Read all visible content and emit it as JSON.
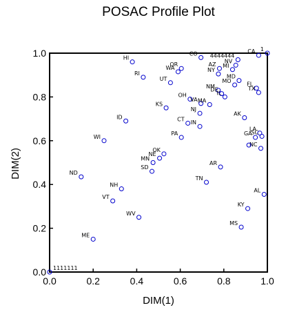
{
  "chart_data": {
    "type": "scatter",
    "title": "POSAC Profile Plot",
    "xlabel": "DIM(1)",
    "ylabel": "DIM(2)",
    "xlim": [
      0.0,
      1.0
    ],
    "ylim": [
      0.0,
      1.0
    ],
    "x_ticks": [
      "0.0",
      "0.2",
      "0.4",
      "0.6",
      "0.8",
      "1.0"
    ],
    "y_ticks": [
      "0.0",
      "0.2",
      "0.4",
      "0.6",
      "0.8",
      "1.0"
    ],
    "grid": false,
    "marker_color": "#0000cc",
    "points": [
      {
        "label": "1111111",
        "x": 0.0,
        "y": 0.0
      },
      {
        "label": "ME",
        "x": 0.2,
        "y": 0.15
      },
      {
        "label": "WV",
        "x": 0.41,
        "y": 0.25
      },
      {
        "label": "VT",
        "x": 0.29,
        "y": 0.325
      },
      {
        "label": "NH",
        "x": 0.33,
        "y": 0.38
      },
      {
        "label": "ND",
        "x": 0.145,
        "y": 0.435
      },
      {
        "label": "WI",
        "x": 0.25,
        "y": 0.6
      },
      {
        "label": "ID",
        "x": 0.35,
        "y": 0.69
      },
      {
        "label": "SD",
        "x": 0.47,
        "y": 0.46
      },
      {
        "label": "MN",
        "x": 0.475,
        "y": 0.5
      },
      {
        "label": "NE",
        "x": 0.505,
        "y": 0.52
      },
      {
        "label": "OK",
        "x": 0.525,
        "y": 0.54
      },
      {
        "label": "KS",
        "x": 0.535,
        "y": 0.75
      },
      {
        "label": "PA",
        "x": 0.605,
        "y": 0.615
      },
      {
        "label": "CT",
        "x": 0.635,
        "y": 0.68
      },
      {
        "label": "IN",
        "x": 0.69,
        "y": 0.665
      },
      {
        "label": "NJ",
        "x": 0.69,
        "y": 0.725
      },
      {
        "label": "OH",
        "x": 0.645,
        "y": 0.79
      },
      {
        "label": "VA",
        "x": 0.695,
        "y": 0.77
      },
      {
        "label": "MA",
        "x": 0.735,
        "y": 0.765
      },
      {
        "label": "TN",
        "x": 0.72,
        "y": 0.41
      },
      {
        "label": "AR",
        "x": 0.785,
        "y": 0.48
      },
      {
        "label": "HI",
        "x": 0.38,
        "y": 0.96
      },
      {
        "label": "RI",
        "x": 0.43,
        "y": 0.89
      },
      {
        "label": "UT",
        "x": 0.555,
        "y": 0.865
      },
      {
        "label": "WA",
        "x": 0.59,
        "y": 0.915
      },
      {
        "label": "OR",
        "x": 0.605,
        "y": 0.93
      },
      {
        "label": "CO",
        "x": 0.695,
        "y": 0.98
      },
      {
        "label": "NY",
        "x": 0.775,
        "y": 0.905
      },
      {
        "label": "AZ",
        "x": 0.78,
        "y": 0.93
      },
      {
        "label": "NM",
        "x": 0.775,
        "y": 0.83
      },
      {
        "label": "DE",
        "x": 0.79,
        "y": 0.815
      },
      {
        "label": "IL",
        "x": 0.805,
        "y": 0.8
      },
      {
        "label": "MO",
        "x": 0.85,
        "y": 0.855
      },
      {
        "label": "MD",
        "x": 0.87,
        "y": 0.875
      },
      {
        "label": "MI",
        "x": 0.84,
        "y": 0.925
      },
      {
        "label": "NV",
        "x": 0.855,
        "y": 0.945
      },
      {
        "label": "4444444",
        "x": 0.865,
        "y": 0.97
      },
      {
        "label": "CA",
        "x": 0.96,
        "y": 0.99
      },
      {
        "label": "1",
        "x": 1.0,
        "y": 1.0
      },
      {
        "label": "FL",
        "x": 0.95,
        "y": 0.84
      },
      {
        "label": "TX",
        "x": 0.96,
        "y": 0.82
      },
      {
        "label": "AK",
        "x": 0.895,
        "y": 0.705
      },
      {
        "label": "LA",
        "x": 0.965,
        "y": 0.635
      },
      {
        "label": "SC",
        "x": 0.975,
        "y": 0.62
      },
      {
        "label": "GA",
        "x": 0.945,
        "y": 0.615
      },
      {
        "label": "NC",
        "x": 0.97,
        "y": 0.565
      },
      {
        "label": "",
        "x": 0.915,
        "y": 0.58
      },
      {
        "label": "AL",
        "x": 0.985,
        "y": 0.355
      },
      {
        "label": "KY",
        "x": 0.91,
        "y": 0.29
      },
      {
        "label": "MS",
        "x": 0.88,
        "y": 0.205
      }
    ]
  }
}
